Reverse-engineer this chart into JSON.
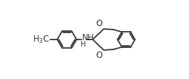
{
  "bg_color": "#ffffff",
  "line_color": "#333333",
  "line_width": 1.3,
  "font_size": 8.5,
  "figsize": [
    2.67,
    1.12
  ],
  "dpi": 100,
  "xlim": [
    -0.05,
    1.05
  ],
  "ylim": [
    0.08,
    0.92
  ]
}
